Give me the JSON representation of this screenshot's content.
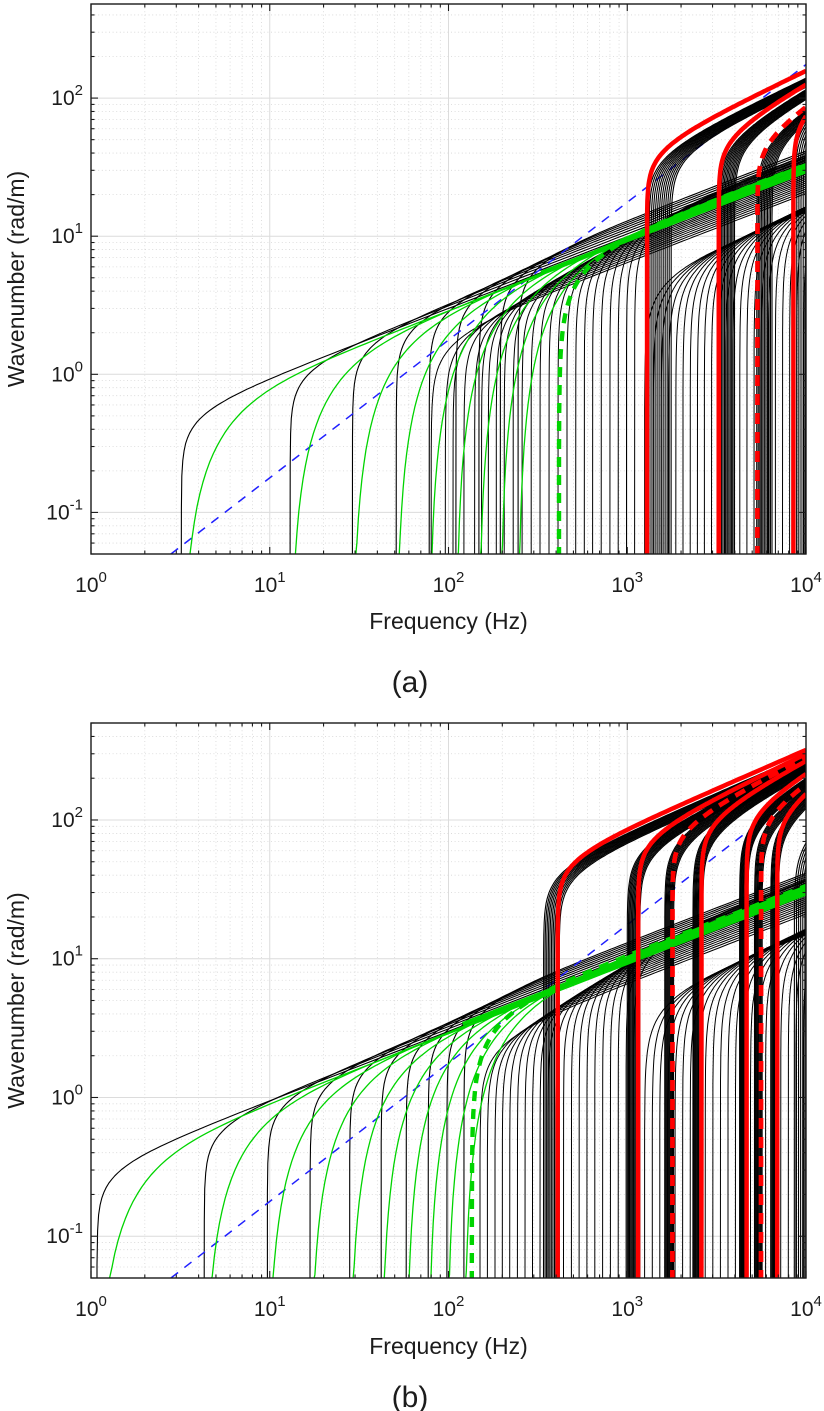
{
  "figure": {
    "panels": [
      "(a)",
      "(b)"
    ]
  },
  "chart_data": [
    {
      "type": "line",
      "panel": "a",
      "caption": "(a)",
      "xlabel": "Frequency (Hz)",
      "ylabel": "Wavenumber (rad/m)",
      "xscale": "log",
      "yscale": "log",
      "xlim": [
        1,
        10000
      ],
      "ylim": [
        0.05,
        480
      ],
      "xtick_exponents": [
        0,
        1,
        2,
        3,
        4
      ],
      "ytick_exponents": [
        -1,
        0,
        1,
        2
      ],
      "grid": {
        "major": true,
        "minor": true
      },
      "colors": {
        "modes": "#000000",
        "highlight_green": "#00d400",
        "highlight_red": "#ff0000",
        "acoustic_blue": "#2020ff"
      },
      "series": [
        {
          "name": "fan-modes-black",
          "kind": "modes",
          "color": "#000000",
          "width": 1.0,
          "cutoffs": [
            80,
            96,
            106,
            122,
            140,
            153,
            167,
            185,
            205,
            230,
            258,
            290,
            325,
            365,
            410,
            460,
            515,
            575,
            640,
            715,
            800,
            890,
            990,
            1100
          ],
          "k_at_10k": 30,
          "k_factor_range": [
            0.68,
            1.28
          ],
          "p": 0.5,
          "q": 0.3
        },
        {
          "name": "fan-modes-black-high",
          "kind": "modes",
          "color": "#000000",
          "width": 1.0,
          "cutoffs": [
            1250,
            1400,
            1550,
            1700,
            1870,
            2050,
            2250,
            2470,
            2700,
            2960,
            3240,
            3550,
            3890,
            4260,
            4670,
            5120,
            5610,
            6150,
            6740,
            7390,
            8100,
            8880,
            9730
          ],
          "k_at_10k": 30,
          "k_factor_range": [
            0.5,
            0.64
          ],
          "p": 0.5,
          "q": 0.35
        },
        {
          "name": "pair-modes-black",
          "kind": "modes",
          "color": "#000000",
          "width": 1.1,
          "cutoffs": [
            3.2,
            13,
            29,
            51,
            78,
            110,
            148,
            195,
            245
          ],
          "k_at_10k": 30,
          "k_factor_range": [
            1.0,
            1.38
          ],
          "p": 0.5,
          "q": 0.25
        },
        {
          "name": "acoustic-line-blue-dashed",
          "kind": "line",
          "color": "#2020ff",
          "width": 1.5,
          "dash": "9 8",
          "points": [
            [
              2.8,
              0.05
            ],
            [
              10000,
              175
            ]
          ]
        },
        {
          "name": "bundle-modes-1",
          "kind": "modes",
          "color": "#000000",
          "width": 1.1,
          "cutoffs_range": {
            "from": 1290,
            "to": 1760,
            "n": 13
          },
          "k_at_10k": 140,
          "k_factor_range": [
            1.0,
            0.86
          ],
          "p": 0.62,
          "q": 0.22
        },
        {
          "name": "bundle-modes-2",
          "kind": "modes",
          "color": "#000000",
          "width": 1.1,
          "cutoffs_range": {
            "from": 3250,
            "to": 3980,
            "n": 12
          },
          "k_at_10k": 118,
          "k_factor_range": [
            1.0,
            0.86
          ],
          "p": 0.74,
          "q": 0.22
        },
        {
          "name": "bundle-modes-3",
          "kind": "modes",
          "color": "#000000",
          "width": 1.1,
          "cutoffs_range": {
            "from": 5300,
            "to": 6450,
            "n": 11
          },
          "k_at_10k": 88,
          "k_factor_range": [
            1.0,
            0.86
          ],
          "p": 0.85,
          "q": 0.22
        },
        {
          "name": "bundle-modes-4",
          "kind": "modes",
          "color": "#000000",
          "width": 1.1,
          "cutoffs_range": {
            "from": 8400,
            "to": 9900,
            "n": 7
          },
          "k_at_10k": 86,
          "k_factor_range": [
            1.0,
            0.86
          ],
          "p": 1.05,
          "q": 0.22
        },
        {
          "name": "pair-modes-green",
          "kind": "modes",
          "color": "#00d400",
          "width": 1.3,
          "cutoffs": [
            3.2,
            13,
            29,
            51,
            78,
            110,
            148,
            195,
            245
          ],
          "k_at_10k": 30,
          "k_factor_range": [
            0.96,
            1.12
          ],
          "p": 0.5,
          "q": 1.5
        },
        {
          "name": "flexural-line-green",
          "kind": "power",
          "color": "#00d400",
          "width": 3.6,
          "k_at_10k": 30,
          "p": 0.5,
          "f_start": 330
        },
        {
          "name": "flexural-cuton-green-dashed",
          "kind": "modes",
          "color": "#00d400",
          "width": 4.4,
          "dash": "10 8",
          "cutoffs": [
            415
          ],
          "k_at_10k": 33,
          "k_factor_range": [
            1.0,
            1.0
          ],
          "p": 0.5,
          "q": 0.5
        },
        {
          "name": "red-branch-1",
          "kind": "modes",
          "color": "#ff0000",
          "width": 4.5,
          "cutoffs": [
            1290
          ],
          "k_at_10k": 158,
          "k_factor_range": [
            1.0,
            1.0
          ],
          "p": 0.62,
          "q": 0.2
        },
        {
          "name": "red-branch-2",
          "kind": "modes",
          "color": "#ff0000",
          "width": 4.5,
          "cutoffs": [
            3250
          ],
          "k_at_10k": 128,
          "k_factor_range": [
            1.0,
            1.0
          ],
          "p": 0.74,
          "q": 0.2
        },
        {
          "name": "red-branch-dashed-1",
          "kind": "modes",
          "color": "#ff0000",
          "width": 4.7,
          "dash": "11 8",
          "cutoffs": [
            5350
          ],
          "k_at_10k": 92,
          "k_factor_range": [
            1.0,
            1.0
          ],
          "p": 0.85,
          "q": 0.2
        },
        {
          "name": "red-branch-3",
          "kind": "modes",
          "color": "#ff0000",
          "width": 4.5,
          "cutoffs": [
            8500
          ],
          "k_at_10k": 96,
          "k_factor_range": [
            1.0,
            1.0
          ],
          "p": 1.05,
          "q": 0.2
        }
      ]
    },
    {
      "type": "line",
      "panel": "b",
      "caption": "(b)",
      "xlabel": "Frequency (Hz)",
      "ylabel": "Wavenumber (rad/m)",
      "xscale": "log",
      "yscale": "log",
      "xlim": [
        1,
        10000
      ],
      "ylim": [
        0.05,
        500
      ],
      "xtick_exponents": [
        0,
        1,
        2,
        3,
        4
      ],
      "ytick_exponents": [
        -1,
        0,
        1,
        2
      ],
      "grid": {
        "major": true,
        "minor": true
      },
      "colors": {
        "modes": "#000000",
        "highlight_green": "#00d400",
        "highlight_red": "#ff0000",
        "acoustic_blue": "#2020ff"
      },
      "series": [
        {
          "name": "fan-modes-black",
          "kind": "modes",
          "color": "#000000",
          "width": 1.0,
          "cutoffs": [
            150,
            165,
            182,
            200,
            220,
            243,
            268,
            295,
            325,
            360,
            398,
            440,
            487,
            538,
            595,
            658,
            728,
            805,
            890,
            985,
            1090
          ],
          "k_at_10k": 30,
          "k_factor_range": [
            0.7,
            1.26
          ],
          "p": 0.5,
          "q": 0.3
        },
        {
          "name": "fan-modes-black-high",
          "kind": "modes",
          "color": "#000000",
          "width": 1.0,
          "cutoffs": [
            1250,
            1380,
            1520,
            1680,
            1850,
            2040,
            2250,
            2480,
            2730,
            3010,
            3320,
            3660,
            4030,
            4440,
            4890,
            5390,
            5940,
            6550,
            7220,
            7960,
            8770,
            9670
          ],
          "k_at_10k": 30,
          "k_factor_range": [
            0.5,
            0.64
          ],
          "p": 0.5,
          "q": 0.35
        },
        {
          "name": "pair-modes-black",
          "kind": "modes",
          "color": "#000000",
          "width": 1.1,
          "cutoffs": [
            1.08,
            4.3,
            9.7,
            16.8,
            28,
            42,
            58,
            77,
            98,
            122
          ],
          "k_at_10k": 30,
          "k_factor_range": [
            1.0,
            1.38
          ],
          "p": 0.5,
          "q": 0.25
        },
        {
          "name": "acoustic-line-blue-dashed",
          "kind": "line",
          "color": "#2020ff",
          "width": 1.5,
          "dash": "9 8",
          "points": [
            [
              2.8,
              0.05
            ],
            [
              10000,
              175
            ]
          ]
        },
        {
          "name": "bundle-modes-1",
          "kind": "modes",
          "color": "#000000",
          "width": 1.1,
          "cutoffs_range": {
            "from": 340,
            "to": 416,
            "n": 11
          },
          "k_at_10k": 298,
          "k_factor_range": [
            1.0,
            0.86
          ],
          "p": 0.56,
          "q": 0.22
        },
        {
          "name": "bundle-modes-2",
          "kind": "modes",
          "color": "#000000",
          "width": 1.1,
          "cutoffs_range": {
            "from": 1000,
            "to": 1175,
            "n": 12
          },
          "k_at_10k": 279,
          "k_factor_range": [
            1.0,
            0.86
          ],
          "p": 0.62,
          "q": 0.22
        },
        {
          "name": "bundle-modes-3",
          "kind": "modes",
          "color": "#000000",
          "width": 1.1,
          "cutoffs_range": {
            "from": 1620,
            "to": 1815,
            "n": 10
          },
          "k_at_10k": 265,
          "k_factor_range": [
            1.0,
            0.86
          ],
          "p": 0.66,
          "q": 0.22
        },
        {
          "name": "bundle-modes-4",
          "kind": "modes",
          "color": "#000000",
          "width": 1.1,
          "cutoffs_range": {
            "from": 2330,
            "to": 2640,
            "n": 11
          },
          "k_at_10k": 251,
          "k_factor_range": [
            1.0,
            0.86
          ],
          "p": 0.7,
          "q": 0.22
        },
        {
          "name": "bundle-modes-5",
          "kind": "modes",
          "color": "#000000",
          "width": 1.1,
          "cutoffs_range": {
            "from": 4250,
            "to": 4720,
            "n": 11
          },
          "k_at_10k": 209,
          "k_factor_range": [
            1.0,
            0.86
          ],
          "p": 0.78,
          "q": 0.22
        },
        {
          "name": "bundle-modes-6",
          "kind": "modes",
          "color": "#000000",
          "width": 1.1,
          "cutoffs_range": {
            "from": 5150,
            "to": 5680,
            "n": 9
          },
          "k_at_10k": 181,
          "k_factor_range": [
            1.0,
            0.86
          ],
          "p": 0.82,
          "q": 0.22
        },
        {
          "name": "bundle-modes-7",
          "kind": "modes",
          "color": "#000000",
          "width": 1.1,
          "cutoffs_range": {
            "from": 6350,
            "to": 7000,
            "n": 9
          },
          "k_at_10k": 163,
          "k_factor_range": [
            1.0,
            0.86
          ],
          "p": 0.88,
          "q": 0.22
        },
        {
          "name": "bundle-modes-8",
          "kind": "modes",
          "color": "#000000",
          "width": 1.1,
          "cutoffs_range": {
            "from": 8600,
            "to": 9850,
            "n": 6
          },
          "k_at_10k": 92,
          "k_factor_range": [
            1.0,
            0.86
          ],
          "p": 1.1,
          "q": 0.22
        },
        {
          "name": "pair-modes-green",
          "kind": "modes",
          "color": "#00d400",
          "width": 1.3,
          "cutoffs": [
            1.08,
            4.3,
            9.7,
            16.8,
            28,
            42,
            58,
            77,
            98,
            122
          ],
          "k_at_10k": 30,
          "k_factor_range": [
            0.96,
            1.12
          ],
          "p": 0.5,
          "q": 1.5
        },
        {
          "name": "flexural-line-green",
          "kind": "power",
          "color": "#00d400",
          "width": 3.6,
          "k_at_10k": 31,
          "p": 0.5,
          "f_start": 120
        },
        {
          "name": "flexural-cuton-green-dashed",
          "kind": "modes",
          "color": "#00d400",
          "width": 4.4,
          "dash": "10 8",
          "cutoffs": [
            135
          ],
          "k_at_10k": 33.5,
          "k_factor_range": [
            1.0,
            1.0
          ],
          "p": 0.5,
          "q": 0.5
        },
        {
          "name": "red-branch-1",
          "kind": "modes",
          "color": "#ff0000",
          "width": 4.5,
          "cutoffs": [
            408
          ],
          "k_at_10k": 320,
          "k_factor_range": [
            1.0,
            1.0
          ],
          "p": 0.56,
          "q": 0.2
        },
        {
          "name": "red-branch-2",
          "kind": "modes",
          "color": "#ff0000",
          "width": 4.5,
          "cutoffs": [
            1150
          ],
          "k_at_10k": 300,
          "k_factor_range": [
            1.0,
            1.0
          ],
          "p": 0.62,
          "q": 0.2
        },
        {
          "name": "red-branch-dashed-1",
          "kind": "modes",
          "color": "#ff0000",
          "width": 4.7,
          "dash": "11 8",
          "cutoffs": [
            1790
          ],
          "k_at_10k": 285,
          "k_factor_range": [
            1.0,
            1.0
          ],
          "p": 0.66,
          "q": 0.2
        },
        {
          "name": "red-branch-3",
          "kind": "modes",
          "color": "#ff0000",
          "width": 4.5,
          "cutoffs": [
            2600
          ],
          "k_at_10k": 270,
          "k_factor_range": [
            1.0,
            1.0
          ],
          "p": 0.7,
          "q": 0.2
        },
        {
          "name": "red-branch-4",
          "kind": "modes",
          "color": "#ff0000",
          "width": 4.5,
          "cutoffs": [
            4650
          ],
          "k_at_10k": 225,
          "k_factor_range": [
            1.0,
            1.0
          ],
          "p": 0.78,
          "q": 0.2
        },
        {
          "name": "red-branch-dashed-2",
          "kind": "modes",
          "color": "#ff0000",
          "width": 4.7,
          "dash": "11 8",
          "cutoffs": [
            5600
          ],
          "k_at_10k": 195,
          "k_factor_range": [
            1.0,
            1.0
          ],
          "p": 0.82,
          "q": 0.2
        },
        {
          "name": "red-branch-5",
          "kind": "modes",
          "color": "#ff0000",
          "width": 4.5,
          "cutoffs": [
            6900
          ],
          "k_at_10k": 175,
          "k_factor_range": [
            1.0,
            1.0
          ],
          "p": 0.88,
          "q": 0.2
        }
      ]
    }
  ]
}
